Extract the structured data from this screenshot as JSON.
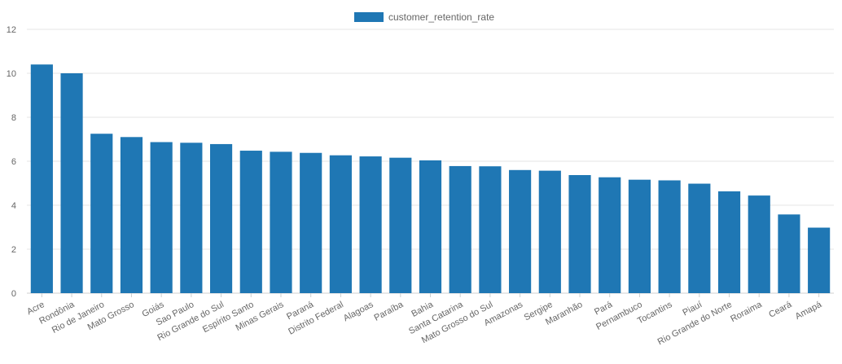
{
  "chart_data": {
    "type": "bar",
    "categories": [
      "Acre",
      "Rondônia",
      "Rio de Janeiro",
      "Mato Grosso",
      "Goiás",
      "Sao Paulo",
      "Rio Grande do Sul",
      "Espírito Santo",
      "Minas Gerais",
      "Paraná",
      "Distrito Federal",
      "Alagoas",
      "Paraíba",
      "Bahia",
      "Santa Catarina",
      "Mato Grosso do Sul",
      "Amazonas",
      "Sergipe",
      "Maranhão",
      "Pará",
      "Pernambuco",
      "Tocantins",
      "Piauí",
      "Rio Grande do Norte",
      "Roraima",
      "Ceará",
      "Amapá"
    ],
    "series": [
      {
        "name": "customer_retention_rate",
        "color": "#1f77b4",
        "values": [
          10.4,
          10.0,
          7.25,
          7.1,
          6.87,
          6.84,
          6.78,
          6.48,
          6.43,
          6.38,
          6.27,
          6.22,
          6.16,
          6.04,
          5.78,
          5.77,
          5.6,
          5.57,
          5.37,
          5.27,
          5.16,
          5.13,
          4.98,
          4.63,
          4.44,
          3.58,
          2.98
        ]
      }
    ],
    "ylim": [
      0,
      12
    ],
    "yticks": [
      0,
      2,
      4,
      6,
      8,
      10,
      12
    ],
    "grid": true,
    "legend_position": "top-center",
    "xlabel": "",
    "ylabel": ""
  }
}
